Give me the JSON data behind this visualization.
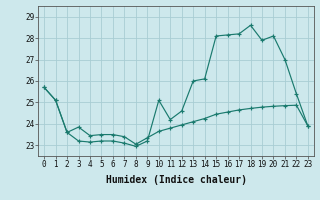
{
  "xlabel": "Humidex (Indice chaleur)",
  "bg_color": "#cde8ec",
  "grid_color": "#a8cdd4",
  "line_color": "#1a7a6e",
  "x_values": [
    0,
    1,
    2,
    3,
    4,
    5,
    6,
    7,
    8,
    9,
    10,
    11,
    12,
    13,
    14,
    15,
    16,
    17,
    18,
    19,
    20,
    21,
    22,
    23
  ],
  "line1_y": [
    25.7,
    25.1,
    23.6,
    23.2,
    23.15,
    23.2,
    23.2,
    23.1,
    22.95,
    23.2,
    25.1,
    24.2,
    24.6,
    26.0,
    26.1,
    28.1,
    28.15,
    28.2,
    28.6,
    27.9,
    28.1,
    27.0,
    25.4,
    23.9
  ],
  "line2_y": [
    25.7,
    25.1,
    23.6,
    23.85,
    23.45,
    23.5,
    23.5,
    23.4,
    23.05,
    23.35,
    23.65,
    23.8,
    23.95,
    24.1,
    24.25,
    24.45,
    24.55,
    24.65,
    24.72,
    24.78,
    24.82,
    24.85,
    24.87,
    23.9
  ],
  "ylim_min": 22.5,
  "ylim_max": 29.5,
  "yticks": [
    23,
    24,
    25,
    26,
    27,
    28,
    29
  ],
  "xticks": [
    0,
    1,
    2,
    3,
    4,
    5,
    6,
    7,
    8,
    9,
    10,
    11,
    12,
    13,
    14,
    15,
    16,
    17,
    18,
    19,
    20,
    21,
    22,
    23
  ],
  "label_fontsize": 7,
  "tick_fontsize": 5.5
}
